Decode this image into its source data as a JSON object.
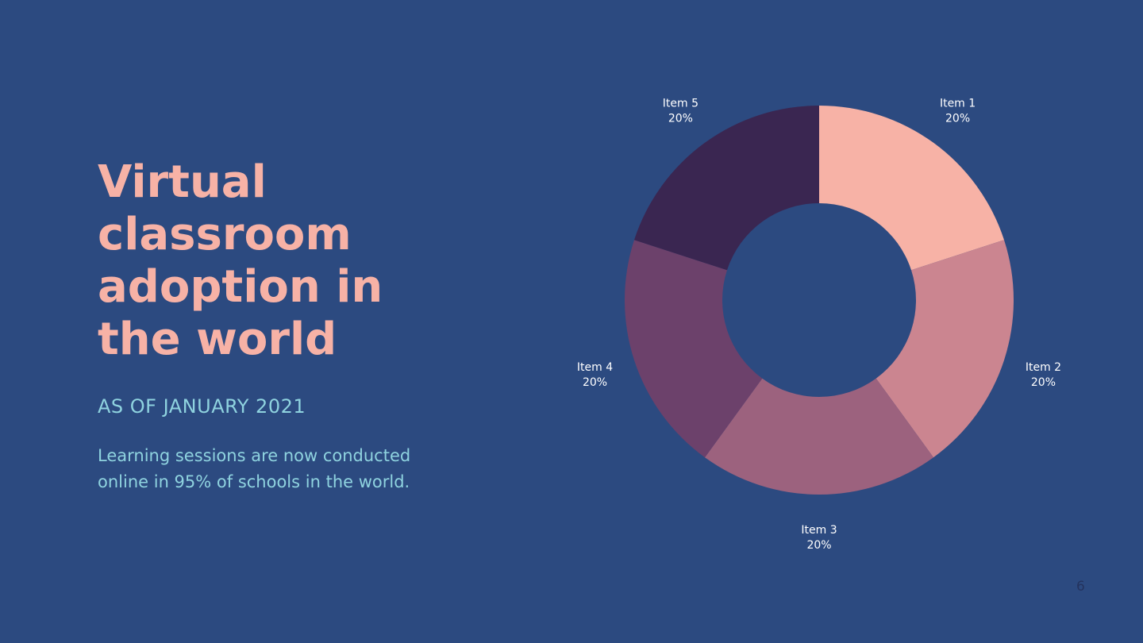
{
  "slide": {
    "title": "Virtual\nclassroom\nadoption in\nthe world",
    "subtitle": "AS OF JANUARY 2021",
    "body": "Learning sessions are now conducted\nonline in 95% of schools in the world.",
    "page_number": "6"
  },
  "colors": {
    "background": "#2c4a80",
    "title": "#f7b2a6",
    "accent_text": "#8fd3df",
    "label_text": "#ffffff"
  },
  "chart_data": {
    "type": "pie",
    "subtype": "donut",
    "title": "",
    "start": "top",
    "direction": "clockwise",
    "series": [
      {
        "categories": [
          "Item 1",
          "Item 2",
          "Item 3",
          "Item 4",
          "Item 5"
        ],
        "values": [
          20,
          20,
          20,
          20,
          20
        ],
        "value_labels": [
          "20%",
          "20%",
          "20%",
          "20%",
          "20%"
        ],
        "colors": [
          "#f7b2a6",
          "#cb8590",
          "#9c627e",
          "#6c416b",
          "#3a2651"
        ]
      }
    ]
  }
}
